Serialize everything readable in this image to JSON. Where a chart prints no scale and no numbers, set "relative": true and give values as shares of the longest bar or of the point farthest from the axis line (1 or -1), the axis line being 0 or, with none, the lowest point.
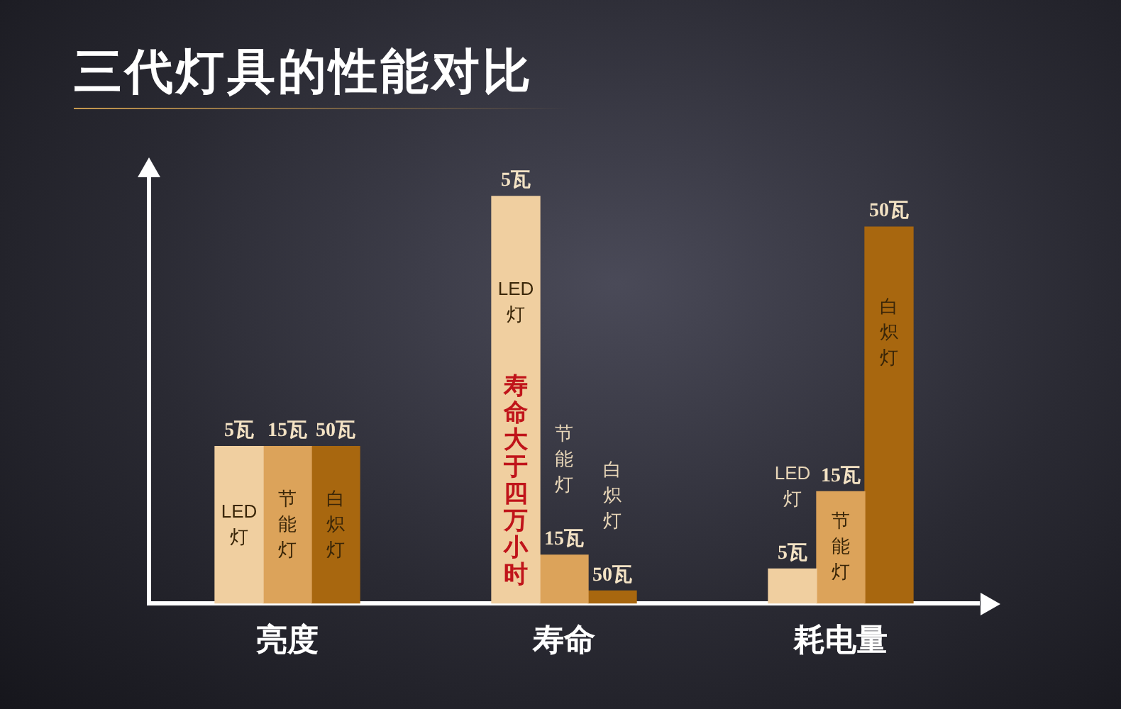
{
  "chart_data": {
    "type": "bar",
    "title": "三代灯具的性能对比",
    "relative": true,
    "categories": [
      "亮度",
      "寿命",
      "耗电量"
    ],
    "series": [
      {
        "name": "LED灯",
        "color": "#f0cfa0",
        "values": [
          0.386,
          1,
          0.085
        ]
      },
      {
        "name": "节能灯",
        "color": "#dca35a",
        "values": [
          0.386,
          0.119,
          0.275
        ]
      },
      {
        "name": "白炽灯",
        "color": "#a8670f",
        "values": [
          0.386,
          0.031,
          0.925
        ]
      }
    ],
    "annotations": [
      "5瓦",
      "5瓦",
      "5瓦",
      "15瓦",
      "15瓦",
      "15瓦",
      "50瓦",
      "50瓦",
      "50瓦",
      "寿命大于四万小时"
    ],
    "legend": false,
    "grid": false
  }
}
